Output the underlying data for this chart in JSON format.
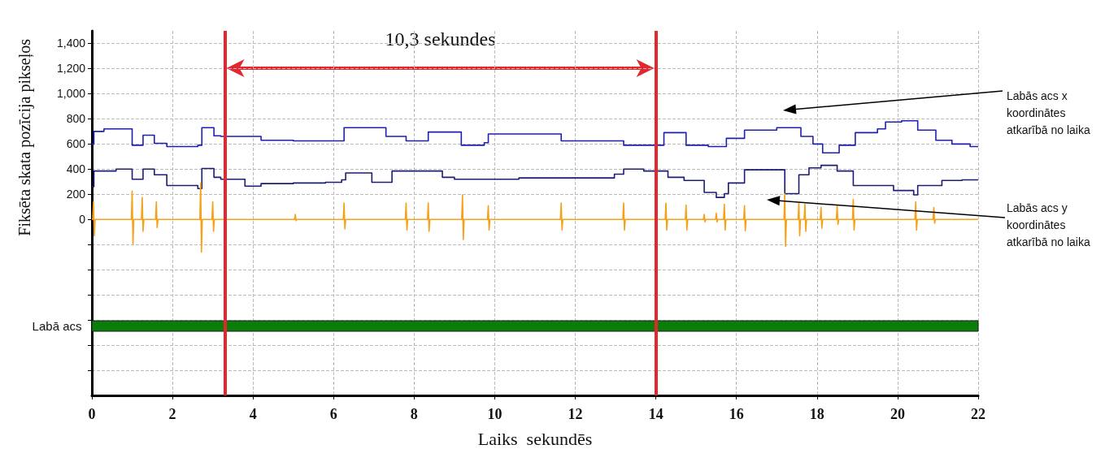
{
  "chart_data": {
    "type": "line",
    "xlabel": "Laiks  sekundēs",
    "ylabel": "Fiksēta skata pozīcija pikseļos",
    "annotations": [
      "10,3 sekundes"
    ],
    "xlim": [
      0,
      22
    ],
    "xticks": [
      0,
      2,
      4,
      6,
      8,
      10,
      12,
      14,
      16,
      18,
      20,
      22
    ],
    "ylim": [
      -1400,
      1500
    ],
    "yticks": [
      {
        "value": -1200,
        "label": null
      },
      {
        "value": -1000,
        "label": null
      },
      {
        "value": -800,
        "label": null
      },
      {
        "value": -600,
        "label": null
      },
      {
        "value": -400,
        "label": null
      },
      {
        "value": -200,
        "label": null
      },
      0,
      200,
      400,
      600,
      800,
      {
        "value": 1000,
        "label": "1,000"
      },
      {
        "value": 1200,
        "label": "1,200"
      },
      {
        "value": 1400,
        "label": "1,400"
      }
    ],
    "grid": true,
    "legend": false,
    "marker": "none",
    "line_style": "solid",
    "ref_lines": [
      {
        "axis": "x",
        "value": 3.3,
        "color": "#e0282e"
      },
      {
        "axis": "x",
        "value": 14,
        "color": "#e0282e"
      }
    ],
    "bands": [
      {
        "axis": "y",
        "from": -890,
        "to": -806,
        "label": "Labā acs",
        "color": "#0a7d0a"
      }
    ],
    "series": [
      {
        "name": "Labās acs x koordinātes atkarībā no laika",
        "type": "step",
        "color": "#1f1fb0",
        "x": [
          0,
          0.05,
          0.3,
          1.0,
          1.27,
          1.55,
          1.86,
          2.63,
          2.73,
          3.03,
          3.2,
          4.2,
          5.0,
          6.26,
          7.3,
          7.8,
          8.35,
          9.17,
          9.74,
          9.84,
          11.65,
          13.2,
          14.2,
          14.75,
          15.3,
          15.75,
          16.2,
          17.0,
          17.6,
          17.9,
          18.14,
          18.55,
          18.95,
          19.5,
          19.7,
          20.1,
          20.5,
          20.95,
          21.35,
          21.8,
          22
        ],
        "values": [
          600,
          700,
          720,
          590,
          670,
          605,
          580,
          590,
          730,
          665,
          660,
          630,
          625,
          730,
          660,
          625,
          695,
          590,
          610,
          680,
          625,
          590,
          690,
          590,
          580,
          645,
          710,
          730,
          660,
          600,
          530,
          590,
          690,
          720,
          775,
          785,
          710,
          630,
          600,
          580,
          580
        ]
      },
      {
        "name": "Labās acs y koordinātes atkarībā no laika",
        "type": "step",
        "color": "#1c1c70",
        "x": [
          0,
          0.05,
          0.6,
          1.0,
          1.27,
          1.55,
          1.86,
          2.63,
          2.73,
          3.03,
          3.2,
          3.8,
          4.2,
          5.0,
          5.8,
          6.2,
          6.3,
          6.95,
          7.45,
          8.7,
          9.0,
          10.6,
          12.0,
          12.97,
          13.2,
          13.7,
          14.3,
          14.7,
          15.2,
          15.5,
          15.7,
          15.8,
          16.2,
          17.2,
          17.55,
          17.8,
          18.1,
          18.5,
          18.9,
          19.9,
          20.4,
          20.5,
          21.1,
          21.6,
          22
        ],
        "values": [
          260,
          385,
          400,
          320,
          400,
          355,
          270,
          245,
          405,
          335,
          320,
          265,
          285,
          290,
          295,
          315,
          370,
          295,
          385,
          335,
          320,
          330,
          330,
          360,
          400,
          385,
          335,
          310,
          215,
          175,
          205,
          290,
          395,
          205,
          355,
          410,
          430,
          385,
          270,
          230,
          195,
          270,
          310,
          315,
          315
        ]
      },
      {
        "color": "#f5a21a",
        "x": [
          0,
          0.02,
          0.04,
          0.06,
          0.08,
          0.98,
          1.0,
          1.02,
          1.04,
          1.23,
          1.25,
          1.27,
          1.29,
          1.58,
          1.6,
          1.62,
          1.64,
          2.68,
          2.7,
          2.72,
          2.74,
          2.98,
          3.0,
          3.02,
          3.04,
          5.03,
          5.05,
          5.07,
          5.09,
          6.24,
          6.26,
          6.28,
          6.3,
          7.78,
          7.8,
          7.82,
          7.84,
          8.33,
          8.35,
          8.37,
          8.39,
          9.18,
          9.2,
          9.22,
          9.24,
          9.82,
          9.84,
          9.86,
          9.88,
          11.63,
          11.65,
          11.67,
          11.69,
          13.18,
          13.2,
          13.22,
          13.24,
          14.23,
          14.25,
          14.27,
          14.29,
          14.73,
          14.75,
          14.77,
          14.79,
          15.18,
          15.2,
          15.22,
          15.24,
          15.48,
          15.5,
          15.52,
          15.54,
          15.68,
          15.7,
          15.72,
          15.74,
          16.18,
          16.2,
          16.22,
          16.24,
          17.18,
          17.2,
          17.22,
          17.24,
          17.53,
          17.55,
          17.57,
          17.59,
          17.68,
          17.7,
          17.72,
          17.74,
          18.08,
          18.1,
          18.12,
          18.14,
          18.48,
          18.5,
          18.52,
          18.54,
          18.88,
          18.9,
          18.92,
          18.94,
          20.43,
          20.45,
          20.47,
          20.49,
          20.88,
          20.9,
          20.92,
          20.94,
          22
        ],
        "values": [
          0,
          0,
          140,
          -130,
          0,
          0,
          225,
          -195,
          0,
          0,
          175,
          -95,
          0,
          0,
          140,
          -65,
          0,
          0,
          290,
          -260,
          0,
          0,
          140,
          -95,
          0,
          0,
          40,
          -10,
          0,
          0,
          130,
          -75,
          0,
          0,
          130,
          -85,
          0,
          0,
          130,
          -95,
          0,
          0,
          195,
          -160,
          0,
          0,
          110,
          -85,
          0,
          0,
          130,
          -85,
          0,
          0,
          130,
          -85,
          0,
          0,
          130,
          -85,
          0,
          0,
          115,
          -85,
          0,
          0,
          40,
          -20,
          0,
          0,
          50,
          -20,
          0,
          0,
          120,
          -85,
          0,
          0,
          110,
          -90,
          0,
          0,
          205,
          -215,
          0,
          0,
          130,
          -130,
          0,
          0,
          120,
          -95,
          0,
          0,
          95,
          -70,
          0,
          0,
          110,
          -40,
          0,
          0,
          160,
          -85,
          0,
          0,
          140,
          -85,
          0,
          0,
          95,
          -30,
          0,
          0
        ]
      }
    ]
  }
}
